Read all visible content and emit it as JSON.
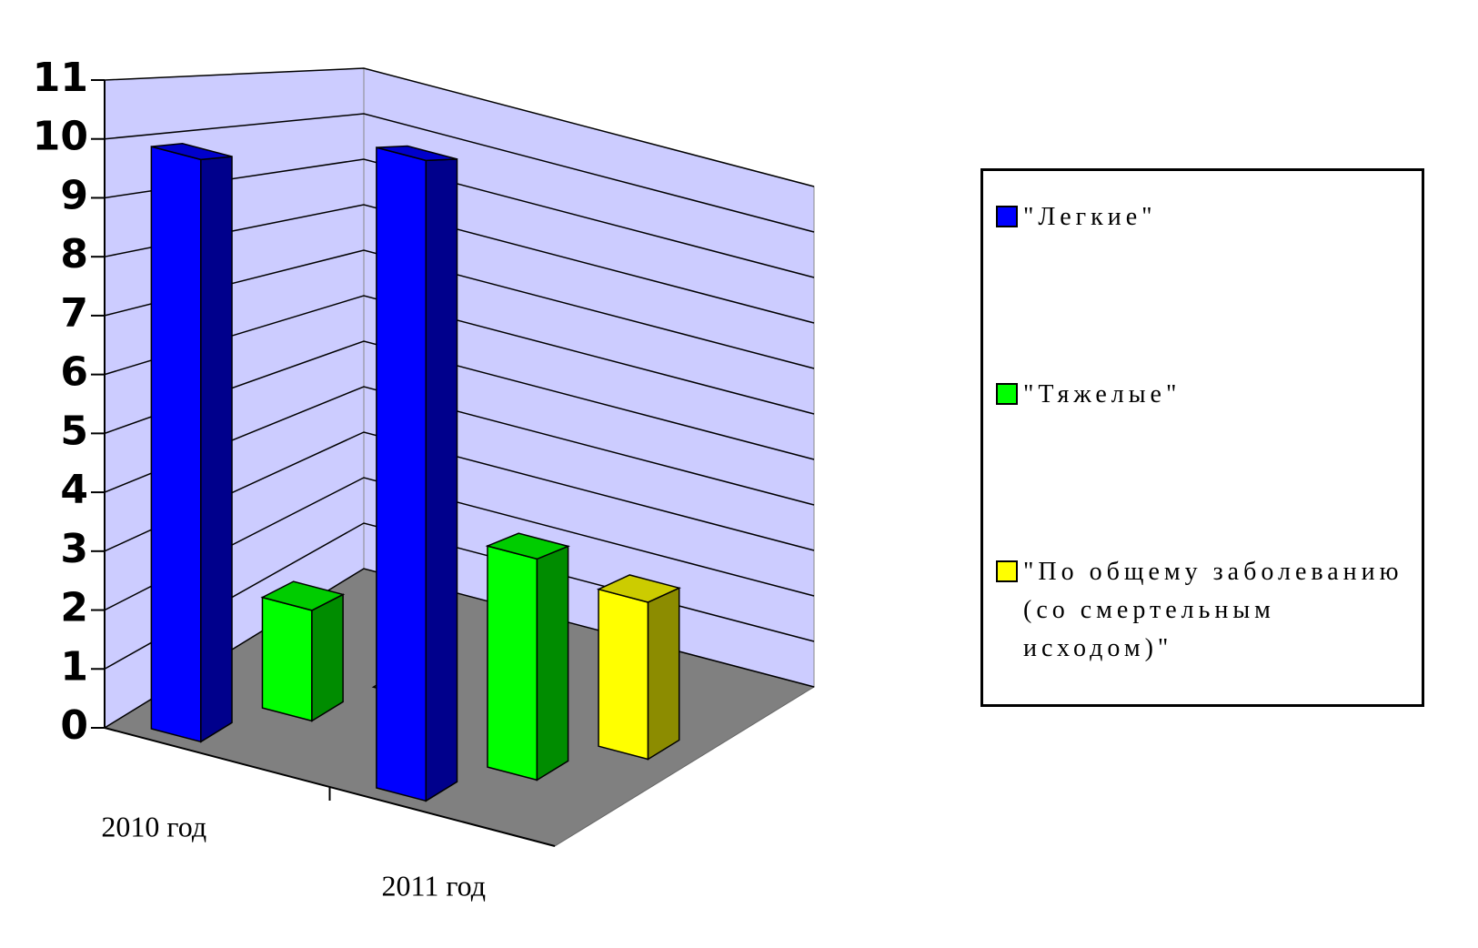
{
  "chart_data": {
    "type": "bar3d",
    "categories": [
      "2010 год",
      "2011 год"
    ],
    "series": [
      {
        "name": "\"Легкие\"",
        "color": "#0000ff",
        "values": [
          10,
          11
        ]
      },
      {
        "name": "\"Тяжелые\"",
        "color": "#00ff00",
        "values": [
          2,
          4
        ]
      },
      {
        "name": "\"По общему заболеванию (со смертельным исходом)\"",
        "color": "#ffff00",
        "values": [
          0,
          3
        ]
      }
    ],
    "ylim": [
      0,
      11
    ],
    "yticks": [
      0,
      1,
      2,
      3,
      4,
      5,
      6,
      7,
      8,
      9,
      10,
      11
    ],
    "grid": true,
    "legend": "right"
  }
}
